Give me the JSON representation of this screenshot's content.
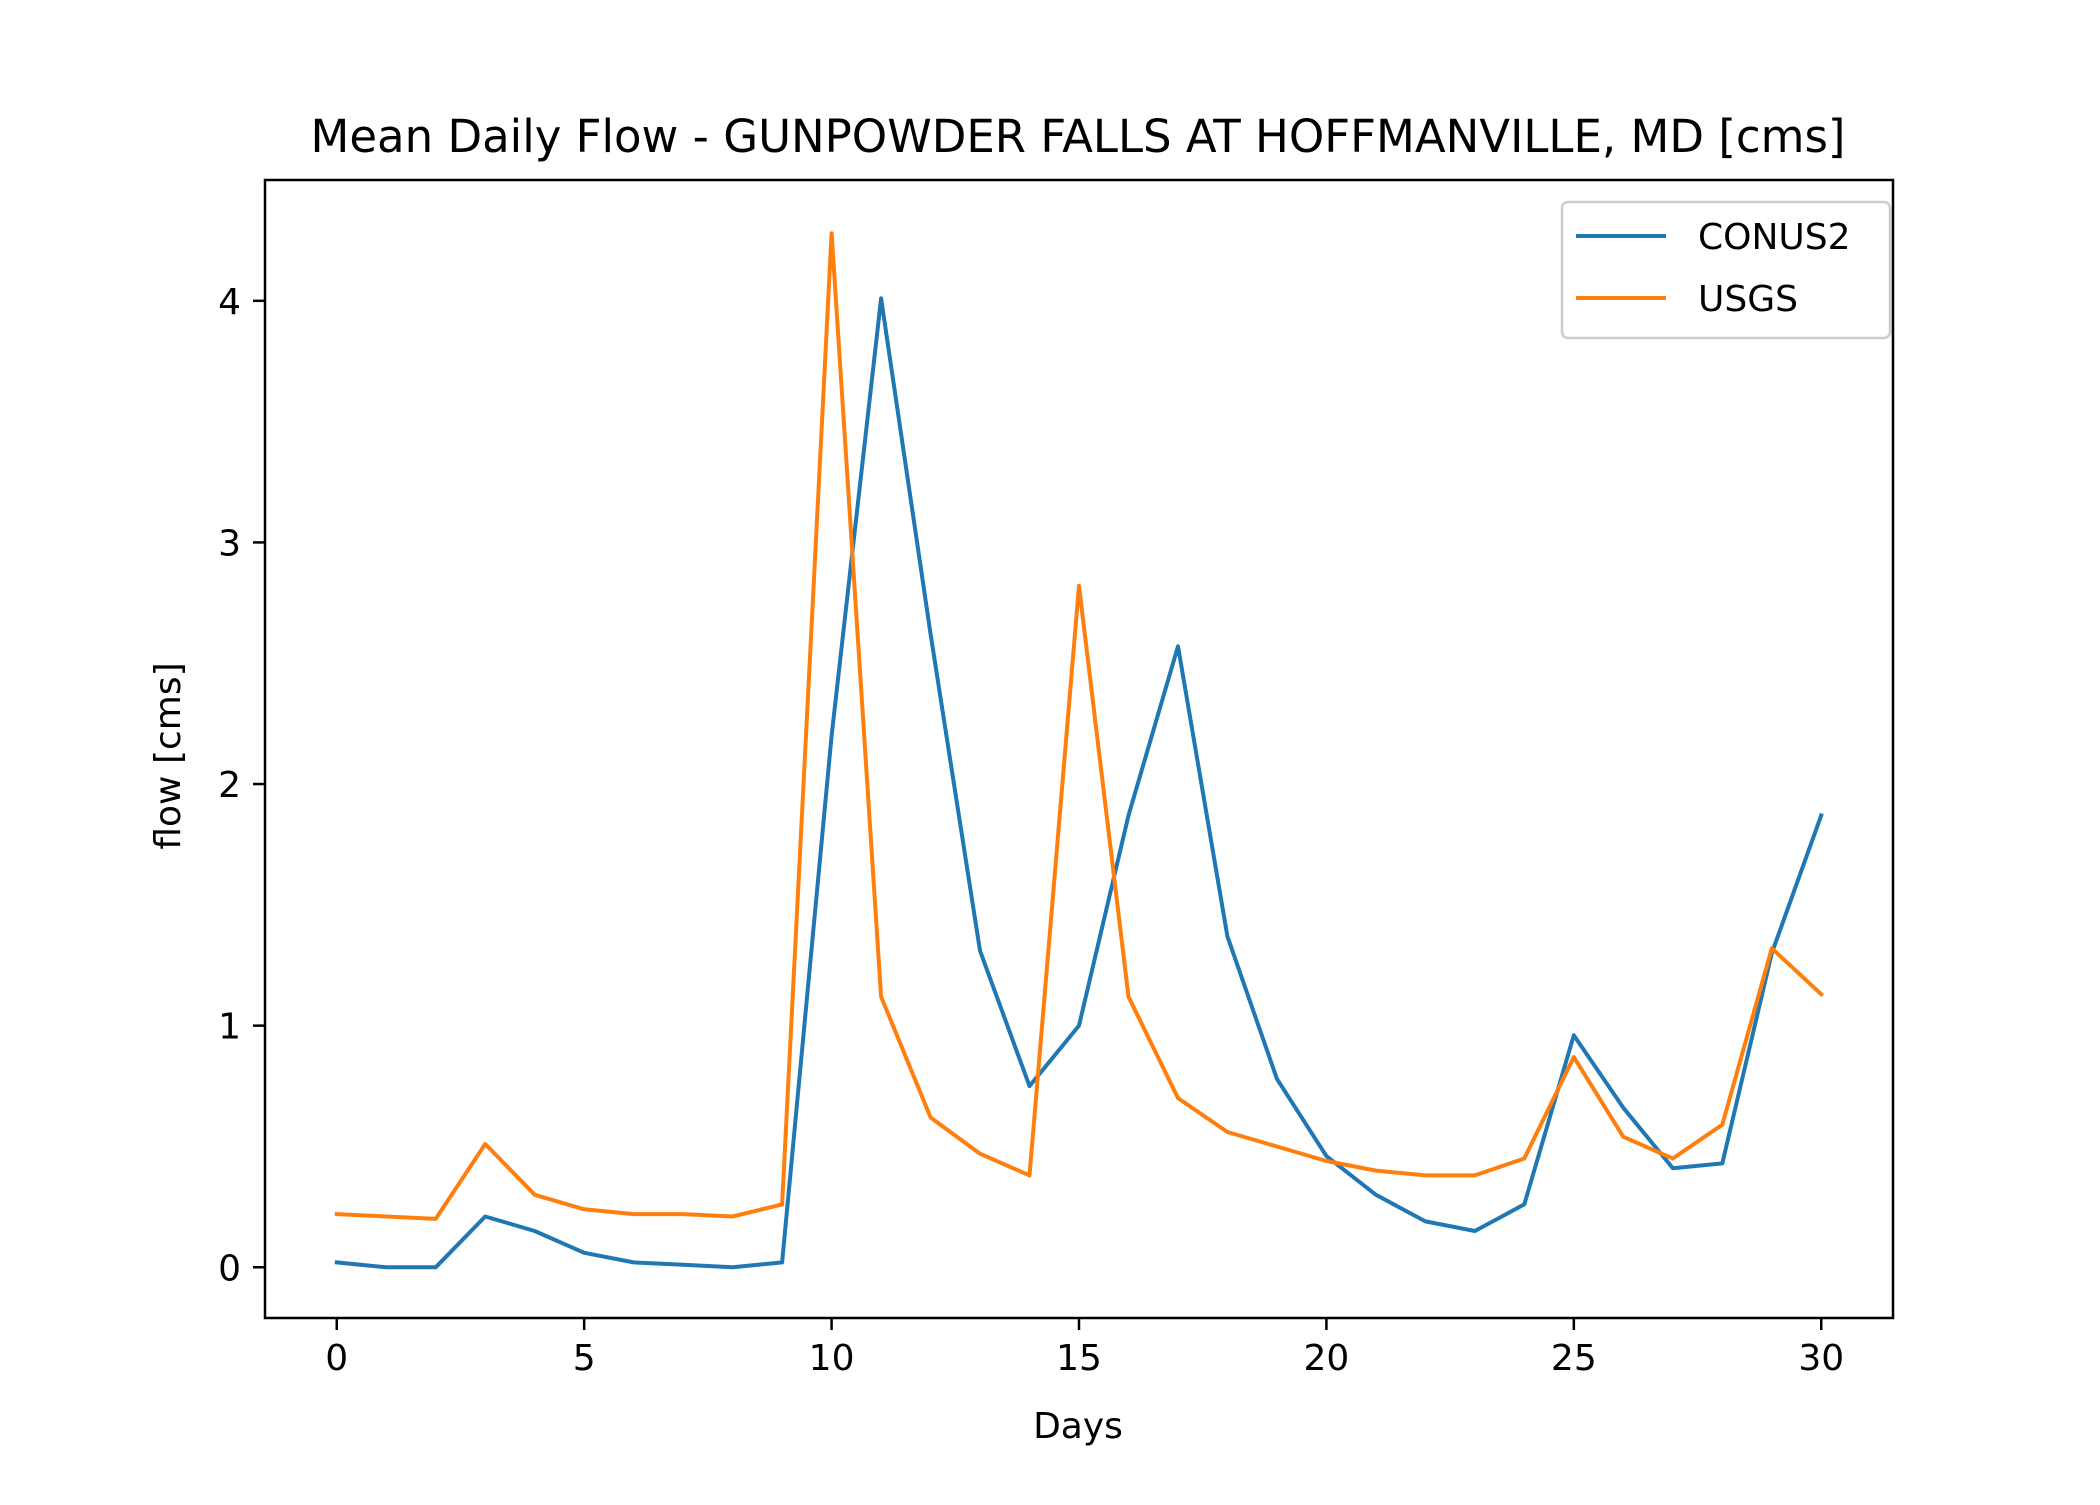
{
  "chart_data": {
    "type": "line",
    "title": "Mean Daily Flow - GUNPOWDER FALLS AT HOFFMANVILLE, MD [cms]",
    "xlabel": "Days",
    "ylabel": "flow [cms]",
    "xlim": [
      -1.45,
      31.45
    ],
    "ylim": [
      -0.21,
      4.5
    ],
    "xticks": [
      0,
      5,
      10,
      15,
      20,
      25,
      30
    ],
    "xtick_labels": [
      "0",
      "5",
      "10",
      "15",
      "20",
      "25",
      "30"
    ],
    "yticks": [
      0,
      1,
      2,
      3,
      4
    ],
    "ytick_labels": [
      "0",
      "1",
      "2",
      "3",
      "4"
    ],
    "grid": false,
    "legend_position": "top-right",
    "x": [
      0,
      1,
      2,
      3,
      4,
      5,
      6,
      7,
      8,
      9,
      10,
      11,
      12,
      13,
      14,
      15,
      16,
      17,
      18,
      19,
      20,
      21,
      22,
      23,
      24,
      25,
      26,
      27,
      28,
      29,
      30
    ],
    "series": [
      {
        "name": "CONUS2",
        "color": "#1f77b4",
        "values": [
          0.02,
          0.0,
          0.0,
          0.21,
          0.15,
          0.06,
          0.02,
          0.01,
          0.0,
          0.02,
          2.2,
          4.01,
          2.62,
          1.31,
          0.75,
          1.0,
          1.87,
          2.57,
          1.37,
          0.78,
          0.46,
          0.3,
          0.19,
          0.15,
          0.26,
          0.96,
          0.66,
          0.41,
          0.43,
          1.3,
          1.87
        ]
      },
      {
        "name": "USGS",
        "color": "#ff7f0e",
        "values": [
          0.22,
          0.21,
          0.2,
          0.51,
          0.3,
          0.24,
          0.22,
          0.22,
          0.21,
          0.26,
          4.28,
          1.12,
          0.62,
          0.47,
          0.38,
          2.82,
          1.12,
          0.7,
          0.56,
          0.5,
          0.44,
          0.4,
          0.38,
          0.38,
          0.45,
          0.87,
          0.54,
          0.45,
          0.59,
          1.32,
          1.13
        ]
      }
    ]
  }
}
